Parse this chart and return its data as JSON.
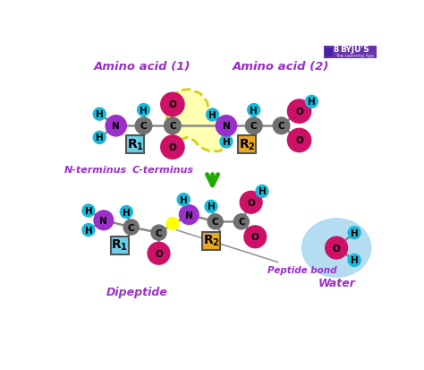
{
  "bg_color": "#ffffff",
  "atom_colors": {
    "H": "#1ab8d8",
    "N": "#9b2fc9",
    "C": "#707070",
    "O": "#cc1166",
    "R1_color": "#6ccfe8",
    "R2_color": "#e8a820"
  },
  "top_label1": "Amino acid (1)",
  "top_label2": "Amino acid (2)",
  "bottom_label1": "N-terminus",
  "bottom_label2": "C-terminus",
  "dipeptide_label": "Dipeptide",
  "peptide_bond_label": "Peptide bond",
  "water_label": "Water",
  "label_color": "#9b2fc9",
  "arrow_color": "#22aa00"
}
